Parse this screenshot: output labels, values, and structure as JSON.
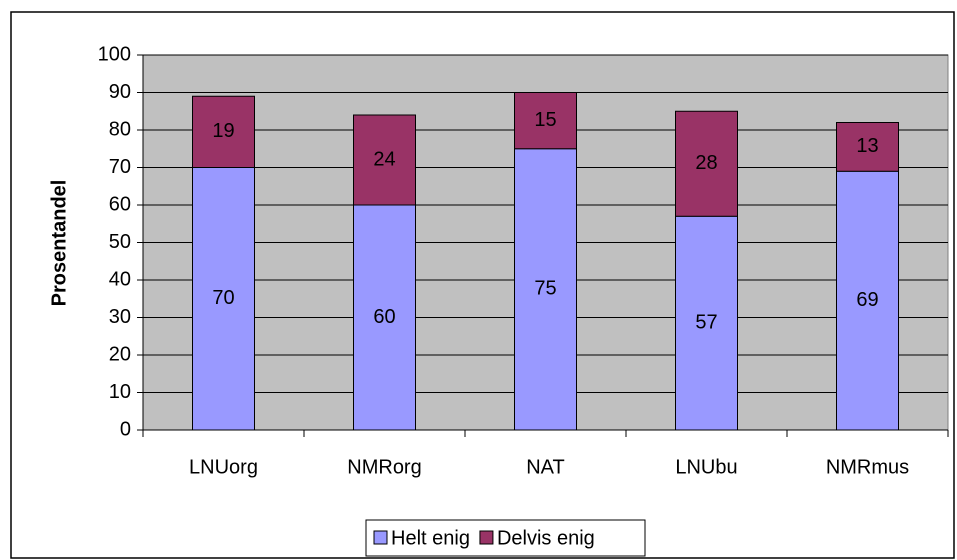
{
  "chart_data": {
    "type": "stacked_bar",
    "y_label": "Prosentandel",
    "categories": [
      "LNUorg",
      "NMRorg",
      "NAT",
      "LNUbu",
      "NMRmus"
    ],
    "series": [
      {
        "name": "Helt enig",
        "color": "#9999ff",
        "values": [
          70,
          60,
          75,
          57,
          69
        ]
      },
      {
        "name": "Delvis enig",
        "color": "#993366",
        "values": [
          19,
          24,
          15,
          28,
          13
        ]
      }
    ],
    "ylim": [
      0,
      100
    ],
    "yticks": [
      0,
      10,
      20,
      30,
      40,
      50,
      60,
      70,
      80,
      90,
      100
    ],
    "grid": true,
    "legend": "bottom",
    "plot_background": "#c0c0c0"
  }
}
